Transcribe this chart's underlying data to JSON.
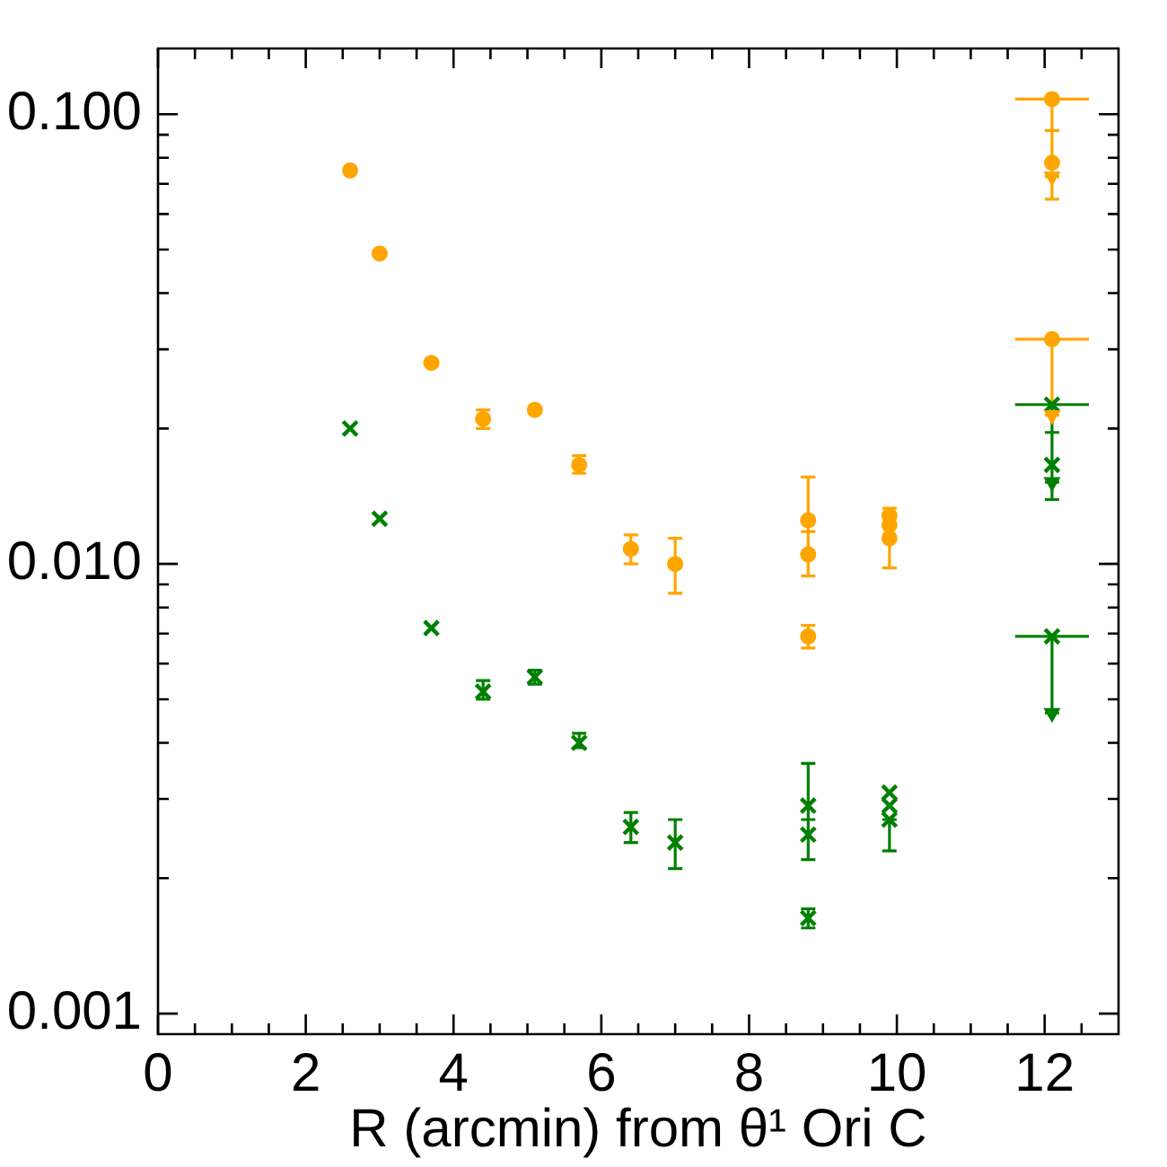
{
  "chart_data": {
    "type": "scatter",
    "xlabel": "R (arcmin) from θ¹ Ori C",
    "log": true,
    "xlim": [
      0,
      13
    ],
    "xticks": [
      0,
      {
        "value": 0.5,
        "label": null
      },
      {
        "value": 1,
        "label": null
      },
      {
        "value": 1.5,
        "label": null
      },
      2,
      {
        "value": 2.5,
        "label": null
      },
      {
        "value": 3,
        "label": null
      },
      {
        "value": 3.5,
        "label": null
      },
      4,
      {
        "value": 4.5,
        "label": null
      },
      {
        "value": 5,
        "label": null
      },
      {
        "value": 5.5,
        "label": null
      },
      6,
      {
        "value": 6.5,
        "label": null
      },
      {
        "value": 7,
        "label": null
      },
      {
        "value": 7.5,
        "label": null
      },
      8,
      {
        "value": 8.5,
        "label": null
      },
      {
        "value": 9,
        "label": null
      },
      {
        "value": 9.5,
        "label": null
      },
      10,
      {
        "value": 10.5,
        "label": null
      },
      {
        "value": 11,
        "label": null
      },
      {
        "value": 11.5,
        "label": null
      },
      12,
      {
        "value": 12.5,
        "label": null
      }
    ],
    "ylim": [
      0.0009,
      0.14
    ],
    "yticks": [
      0.001,
      {
        "value": 0.002,
        "label": null
      },
      {
        "value": 0.003,
        "label": null
      },
      {
        "value": 0.004,
        "label": null
      },
      {
        "value": 0.005,
        "label": null
      },
      {
        "value": 0.006,
        "label": null
      },
      {
        "value": 0.007,
        "label": null
      },
      {
        "value": 0.008,
        "label": null
      },
      {
        "value": 0.009,
        "label": null
      },
      {
        "value": 0.01,
        "label": "0.010"
      },
      {
        "value": 0.02,
        "label": null
      },
      {
        "value": 0.03,
        "label": null
      },
      {
        "value": 0.04,
        "label": null
      },
      {
        "value": 0.05,
        "label": null
      },
      {
        "value": 0.06,
        "label": null
      },
      {
        "value": 0.07,
        "label": null
      },
      {
        "value": 0.08,
        "label": null
      },
      {
        "value": 0.09,
        "label": null
      },
      {
        "value": 0.1,
        "label": "0.100"
      }
    ],
    "series": [
      {
        "color": "#ffa500",
        "marker": "circle",
        "x": [
          2.6,
          3.0,
          3.7,
          4.4,
          5.1,
          5.7,
          6.4,
          7.0,
          8.8,
          8.8,
          8.8,
          9.9,
          9.9,
          9.9,
          12.1,
          12.1,
          12.1
        ],
        "values": [
          0.075,
          0.049,
          0.028,
          0.021,
          0.022,
          0.0166,
          0.0108,
          0.01,
          0.0125,
          0.0105,
          0.0069,
          0.0128,
          0.0122,
          0.0114,
          0.078,
          0.108,
          0.0316
        ],
        "errors": [
          null,
          null,
          null,
          [
            0.02,
            0.022
          ],
          null,
          [
            0.0159,
            0.0174
          ],
          [
            0.01,
            0.0116
          ],
          [
            0.0086,
            0.0114
          ],
          [
            0.0118,
            0.0156
          ],
          [
            0.0094,
            0.0118
          ],
          [
            0.0065,
            0.0073
          ],
          [
            0.0128,
            0.0133
          ],
          null,
          [
            0.0098,
            0.0114
          ],
          [
            0.0647,
            0.092
          ],
          [
            0.0726,
            0.108
          ],
          [
            0.0214,
            0.0316
          ]
        ],
        "xerrors": [
          null,
          null,
          null,
          null,
          null,
          null,
          null,
          null,
          null,
          null,
          null,
          null,
          null,
          null,
          null,
          0.5,
          0.5
        ]
      },
      {
        "color": "#ffa500",
        "marker": "triangle",
        "x": [
          12.1,
          12.1
        ],
        "values": [
          0.0726,
          0.0214
        ]
      },
      {
        "color": "#008000",
        "marker": "cross",
        "x": [
          2.6,
          3.0,
          3.7,
          4.4,
          5.1,
          5.7,
          6.4,
          7.0,
          8.8,
          8.8,
          8.8,
          9.9,
          9.9,
          9.9,
          12.1,
          12.1,
          12.1
        ],
        "values": [
          0.02,
          0.0126,
          0.0072,
          0.0052,
          0.0056,
          0.004,
          0.0026,
          0.0024,
          0.0029,
          0.0025,
          0.00163,
          0.0031,
          0.0029,
          0.0027,
          0.0166,
          0.0226,
          0.0069
        ],
        "errors": [
          null,
          null,
          null,
          [
            0.005,
            0.0055
          ],
          [
            0.0054,
            0.0058
          ],
          [
            0.0039,
            0.0042
          ],
          [
            0.0024,
            0.0028
          ],
          [
            0.0021,
            0.0027
          ],
          [
            0.0027,
            0.0036
          ],
          [
            0.0022,
            0.0027
          ],
          [
            0.00155,
            0.00171
          ],
          null,
          null,
          [
            0.0023,
            0.0027
          ],
          [
            0.0139,
            0.0196
          ],
          [
            0.0152,
            0.0226
          ],
          [
            0.00466,
            0.0069
          ]
        ],
        "xerrors": [
          null,
          null,
          null,
          null,
          null,
          null,
          null,
          null,
          null,
          null,
          null,
          null,
          null,
          null,
          null,
          0.5,
          0.5
        ]
      },
      {
        "color": "#008000",
        "marker": "triangle",
        "x": [
          12.1,
          12.1
        ],
        "values": [
          0.0152,
          0.00466
        ]
      }
    ]
  }
}
